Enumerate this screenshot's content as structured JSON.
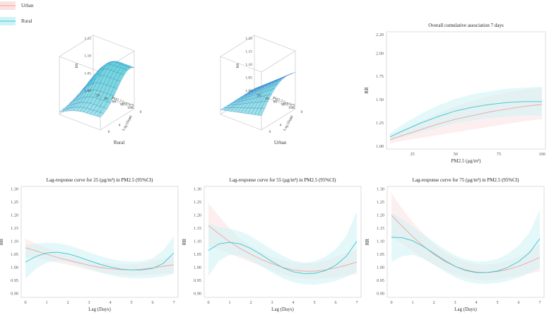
{
  "legend": [
    {
      "name": "Urban",
      "color": "#f4a09c"
    },
    {
      "name": "Rural",
      "color": "#36c6cf"
    }
  ],
  "colors": {
    "urban": "#f4a09c",
    "rural": "#36c6cf",
    "urban_band": "#fbe2e2",
    "rural_band": "#cdf3f6",
    "surface": "#5fd0d4",
    "surface_edge": "#2f6fd8"
  },
  "surfaces": [
    {
      "caption": "Rural",
      "xlabel": "PM2.5 (μg/m³)",
      "ylabel": "Lag (days)",
      "zlabel": "RR",
      "xticks": [
        "20",
        "40",
        "60",
        "80",
        "100"
      ],
      "yticks": [
        "0",
        "2",
        "4",
        "6"
      ],
      "zticks": [
        "1.00",
        "1.05",
        "1.10",
        "1.15"
      ]
    },
    {
      "caption": "Urban",
      "xlabel": "PM2.5 (μg/m³)",
      "ylabel": "Lag (days)",
      "zlabel": "RR",
      "xticks": [
        "20",
        "40",
        "60",
        "80",
        "100"
      ],
      "yticks": [
        "0",
        "2",
        "4",
        "6"
      ],
      "zticks": [
        "1.00",
        "1.05",
        "1.10",
        "1.15",
        "1.20"
      ]
    }
  ],
  "chart_data": [
    {
      "type": "line",
      "title": "Overall cumulative association 7 days",
      "xlabel": "PM2.5 (μg/m³)",
      "ylabel": "RR",
      "xlim": [
        10,
        102
      ],
      "ylim": [
        0.97,
        2.23
      ],
      "xticks": [
        25,
        50,
        75,
        100
      ],
      "yticks": [
        1.0,
        1.25,
        1.5,
        1.75,
        2.0,
        2.2
      ],
      "x": [
        12,
        20,
        30,
        40,
        50,
        60,
        70,
        80,
        90,
        100
      ],
      "series": [
        {
          "name": "Urban",
          "values": [
            1.07,
            1.12,
            1.18,
            1.24,
            1.29,
            1.33,
            1.37,
            1.4,
            1.43,
            1.45
          ],
          "lower": [
            1.03,
            1.06,
            1.09,
            1.12,
            1.15,
            1.18,
            1.21,
            1.24,
            1.27,
            1.29
          ],
          "upper": [
            1.12,
            1.19,
            1.27,
            1.36,
            1.43,
            1.49,
            1.54,
            1.58,
            1.61,
            1.63
          ]
        },
        {
          "name": "Rural",
          "values": [
            1.1,
            1.17,
            1.25,
            1.32,
            1.38,
            1.42,
            1.45,
            1.47,
            1.48,
            1.48
          ],
          "lower": [
            1.06,
            1.1,
            1.15,
            1.2,
            1.25,
            1.28,
            1.3,
            1.32,
            1.33,
            1.33
          ],
          "upper": [
            1.14,
            1.24,
            1.35,
            1.44,
            1.51,
            1.56,
            1.59,
            1.62,
            1.63,
            1.64
          ]
        }
      ]
    },
    {
      "type": "line",
      "title": "Lag-response curve for 25 (μg/m³) in PM2.5 (95%CI)",
      "xlabel": "Lag (Days)",
      "ylabel": "RR",
      "xlim": [
        -0.2,
        7.2
      ],
      "ylim": [
        0.885,
        1.31
      ],
      "xticks": [
        0,
        1,
        2,
        3,
        4,
        5,
        6,
        7
      ],
      "yticks": [
        0.9,
        0.95,
        1.0,
        1.05,
        1.1,
        1.15,
        1.2,
        1.25,
        1.3
      ],
      "x": [
        0,
        0.5,
        1,
        1.5,
        2,
        2.5,
        3,
        3.5,
        4,
        4.5,
        5,
        5.5,
        6,
        6.5,
        7
      ],
      "series": [
        {
          "name": "Urban",
          "values": [
            1.075,
            1.063,
            1.05,
            1.038,
            1.028,
            1.018,
            1.008,
            1.0,
            0.995,
            0.991,
            0.99,
            0.993,
            0.998,
            1.004,
            1.01
          ],
          "lower": [
            1.04,
            1.036,
            1.028,
            1.018,
            1.01,
            1.0,
            0.99,
            0.981,
            0.975,
            0.97,
            0.968,
            0.97,
            0.972,
            0.975,
            0.978
          ],
          "upper": [
            1.11,
            1.092,
            1.074,
            1.06,
            1.048,
            1.036,
            1.026,
            1.02,
            1.016,
            1.012,
            1.012,
            1.016,
            1.024,
            1.034,
            1.044
          ]
        },
        {
          "name": "Rural",
          "values": [
            1.02,
            1.042,
            1.055,
            1.058,
            1.052,
            1.04,
            1.026,
            1.012,
            1.001,
            0.993,
            0.99,
            0.99,
            0.996,
            1.015,
            1.055
          ],
          "lower": [
            0.955,
            0.995,
            1.018,
            1.025,
            1.02,
            1.008,
            0.995,
            0.98,
            0.97,
            0.962,
            0.958,
            0.957,
            0.96,
            0.965,
            0.975
          ],
          "upper": [
            1.085,
            1.09,
            1.095,
            1.093,
            1.085,
            1.072,
            1.058,
            1.044,
            1.033,
            1.025,
            1.022,
            1.024,
            1.035,
            1.065,
            1.12
          ]
        }
      ]
    },
    {
      "type": "line",
      "title": "Lag-response curve for 55 (μg/m³) in PM2.5 (95%CI)",
      "xlabel": "Lag (Days)",
      "ylabel": "RR",
      "xlim": [
        -0.2,
        7.2
      ],
      "ylim": [
        0.885,
        1.31
      ],
      "xticks": [
        0,
        1,
        2,
        3,
        4,
        5,
        6,
        7
      ],
      "yticks": [
        0.9,
        0.95,
        1.0,
        1.05,
        1.1,
        1.15,
        1.2,
        1.25,
        1.3
      ],
      "x": [
        0,
        0.5,
        1,
        1.5,
        2,
        2.5,
        3,
        3.5,
        4,
        4.5,
        5,
        5.5,
        6,
        6.5,
        7
      ],
      "series": [
        {
          "name": "Urban",
          "values": [
            1.16,
            1.128,
            1.098,
            1.072,
            1.05,
            1.03,
            1.014,
            1.0,
            0.99,
            0.985,
            0.985,
            0.99,
            0.998,
            1.008,
            1.02
          ],
          "lower": [
            1.08,
            1.068,
            1.053,
            1.036,
            1.02,
            1.004,
            0.988,
            0.972,
            0.962,
            0.956,
            0.954,
            0.957,
            0.962,
            0.968,
            0.975
          ],
          "upper": [
            1.245,
            1.196,
            1.15,
            1.11,
            1.082,
            1.058,
            1.04,
            1.028,
            1.02,
            1.015,
            1.016,
            1.026,
            1.04,
            1.055,
            1.07
          ]
        },
        {
          "name": "Rural",
          "values": [
            1.065,
            1.09,
            1.096,
            1.09,
            1.072,
            1.048,
            1.022,
            0.999,
            0.983,
            0.976,
            0.977,
            0.987,
            1.008,
            1.042,
            1.1
          ],
          "lower": [
            0.965,
            1.025,
            1.048,
            1.045,
            1.028,
            1.004,
            0.98,
            0.958,
            0.943,
            0.935,
            0.933,
            0.938,
            0.948,
            0.963,
            0.985
          ],
          "upper": [
            1.17,
            1.155,
            1.148,
            1.138,
            1.12,
            1.094,
            1.068,
            1.045,
            1.026,
            1.018,
            1.024,
            1.04,
            1.07,
            1.12,
            1.215
          ]
        }
      ]
    },
    {
      "type": "line",
      "title": "Lag-response curve for 75 (μg/m³) in PM2.5 (95%CI)",
      "xlabel": "Lag (Days)",
      "ylabel": "RR",
      "xlim": [
        -0.2,
        7.2
      ],
      "ylim": [
        0.885,
        1.31
      ],
      "xticks": [
        0,
        1,
        2,
        3,
        4,
        5,
        6,
        7
      ],
      "yticks": [
        0.9,
        0.95,
        1.0,
        1.05,
        1.1,
        1.15,
        1.2,
        1.25,
        1.3
      ],
      "x": [
        0,
        0.5,
        1,
        1.5,
        2,
        2.5,
        3,
        3.5,
        4,
        4.5,
        5,
        5.5,
        6,
        6.5,
        7
      ],
      "series": [
        {
          "name": "Urban",
          "values": [
            1.2,
            1.158,
            1.118,
            1.082,
            1.05,
            1.024,
            1.004,
            0.99,
            0.982,
            0.98,
            0.984,
            0.992,
            1.004,
            1.02,
            1.038
          ],
          "lower": [
            1.115,
            1.09,
            1.062,
            1.034,
            1.01,
            0.99,
            0.972,
            0.96,
            0.952,
            0.95,
            0.953,
            0.96,
            0.968,
            0.976,
            0.985
          ],
          "upper": [
            1.285,
            1.226,
            1.174,
            1.13,
            1.09,
            1.058,
            1.036,
            1.02,
            1.012,
            1.01,
            1.015,
            1.025,
            1.04,
            1.064,
            1.09
          ]
        },
        {
          "name": "Rural",
          "values": [
            1.115,
            1.114,
            1.102,
            1.08,
            1.054,
            1.027,
            1.004,
            0.988,
            0.98,
            0.98,
            0.986,
            1.0,
            1.022,
            1.055,
            1.11
          ],
          "lower": [
            1.02,
            1.042,
            1.048,
            1.034,
            1.01,
            0.985,
            0.962,
            0.946,
            0.938,
            0.936,
            0.94,
            0.948,
            0.96,
            0.978,
            1.0
          ],
          "upper": [
            1.21,
            1.186,
            1.156,
            1.126,
            1.098,
            1.07,
            1.046,
            1.03,
            1.022,
            1.024,
            1.032,
            1.052,
            1.084,
            1.132,
            1.22
          ]
        }
      ]
    }
  ]
}
